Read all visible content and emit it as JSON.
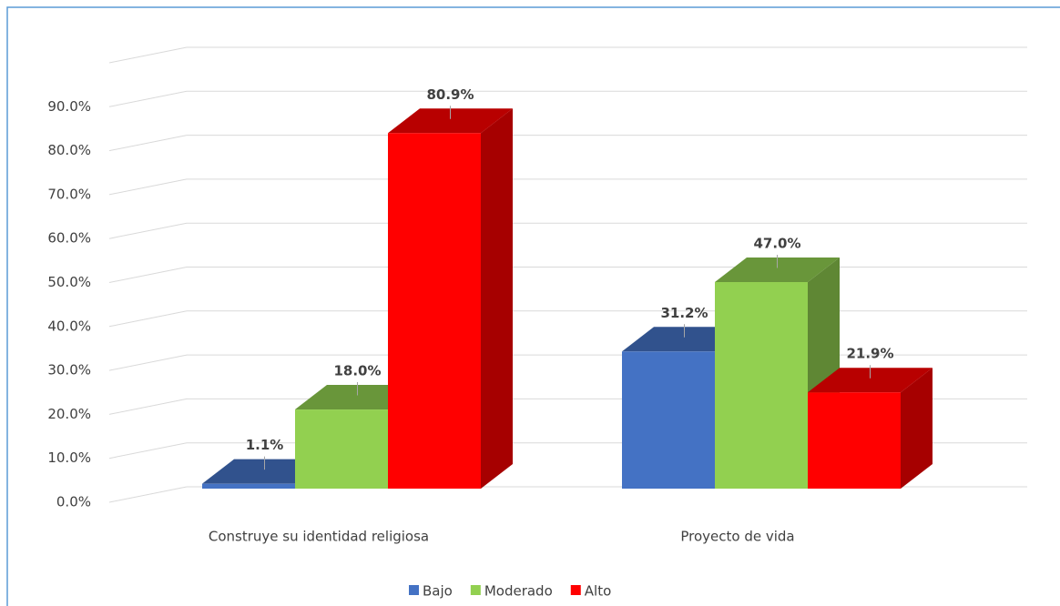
{
  "chart_data": {
    "type": "bar3d",
    "categories": [
      "Construye su identidad religiosa",
      "Proyecto de vida"
    ],
    "series": [
      {
        "name": "Bajo",
        "color": "#4472c4",
        "values": [
          1.1,
          31.2
        ],
        "value_labels": [
          "1.1%",
          "31.2%"
        ]
      },
      {
        "name": "Moderado",
        "color": "#92d050",
        "values": [
          18.0,
          47.0
        ],
        "value_labels": [
          "18.0%",
          "47.0%"
        ]
      },
      {
        "name": "Alto",
        "color": "#ff0000",
        "values": [
          80.9,
          21.9
        ],
        "value_labels": [
          "80.9%",
          "21.9%"
        ]
      }
    ],
    "ylim": [
      0,
      100
    ],
    "yticks": [
      {
        "value": 0,
        "label": "0.0%"
      },
      {
        "value": 10,
        "label": "10.0%"
      },
      {
        "value": 20,
        "label": "20.0%"
      },
      {
        "value": 30,
        "label": "30.0%"
      },
      {
        "value": 40,
        "label": "40.0%"
      },
      {
        "value": 50,
        "label": "50.0%"
      },
      {
        "value": 60,
        "label": "60.0%"
      },
      {
        "value": 70,
        "label": "70.0%"
      },
      {
        "value": 80,
        "label": "80.0%"
      },
      {
        "value": 90,
        "label": "90.0%"
      }
    ],
    "grid": true,
    "legend": "bottom"
  }
}
